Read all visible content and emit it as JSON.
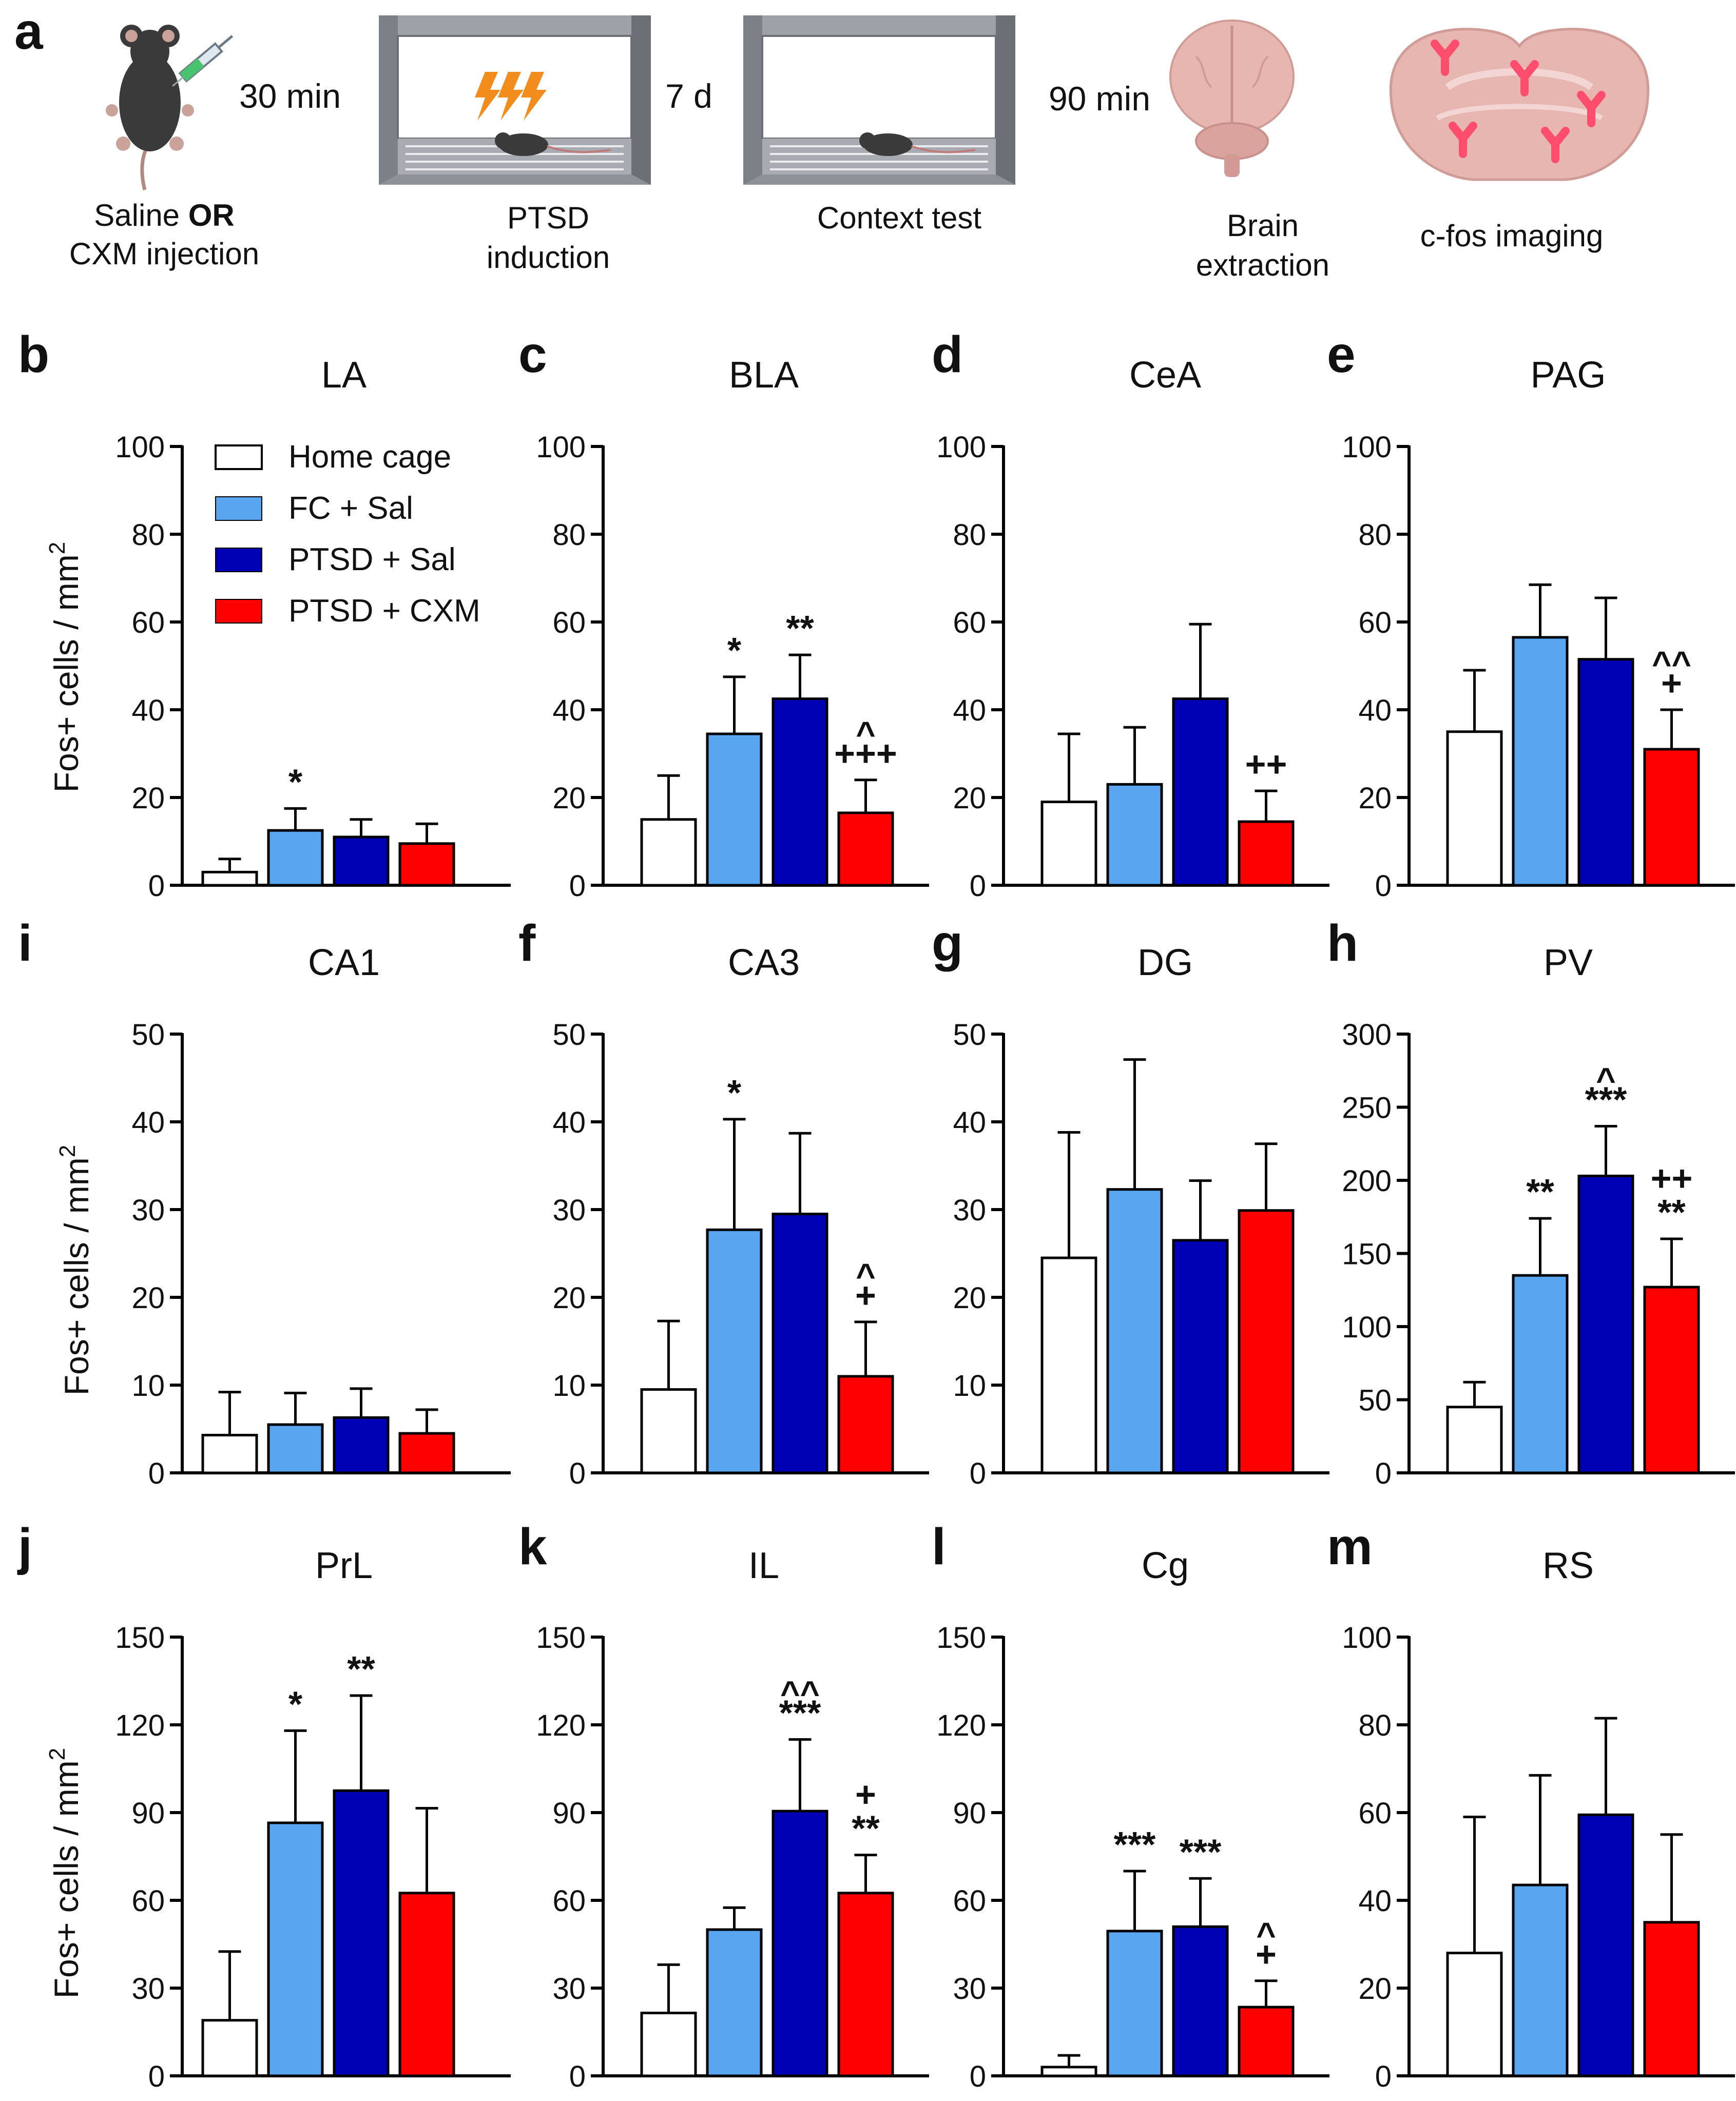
{
  "colors": {
    "home_cage": "#ffffff",
    "fc_sal": "#5aa5ef",
    "ptsd_sal": "#0000b4",
    "ptsd_cxm": "#ff0000",
    "box_gray": "#8a8d93",
    "box_dark": "#5f6368",
    "bolt": "#f28c1d",
    "brain": "#e8b6b1",
    "antibody": "#ff4d6d",
    "mouse": "#3a3a3a"
  },
  "panel_a": {
    "letter": "a",
    "step1_line1_pre": "Saline ",
    "step1_line1_bold": "OR",
    "step1_line2": "CXM injection",
    "arrow1": "30 min",
    "step2_line1": "PTSD",
    "step2_line2": "induction",
    "arrow2": "7 d",
    "step3": "Context test",
    "arrow3": "90 min",
    "step4_line1": "Brain",
    "step4_line2": "extraction",
    "step5": "c-fos imaging",
    "icons": [
      "mouse-with-syringe-icon",
      "fear-conditioning-box-icon",
      "context-box-icon",
      "brain-icon",
      "brain-slice-antibody-icon"
    ]
  },
  "y_axis_label": "Fos+ cells / mm",
  "y_axis_label_sup": "2",
  "legend": [
    "Home cage",
    "FC + Sal",
    "PTSD + Sal",
    "PTSD + CXM"
  ],
  "chart_data": [
    {
      "panel": "b",
      "title": "LA",
      "type": "bar",
      "categories": [
        "Home cage",
        "FC + Sal",
        "PTSD + Sal",
        "PTSD + CXM"
      ],
      "values": [
        3,
        12.5,
        11,
        9.5
      ],
      "errors": [
        3,
        5,
        4,
        4.5
      ],
      "ylim": [
        0,
        100
      ],
      "yticks": [
        0,
        20,
        40,
        60,
        80,
        100
      ],
      "annotations": [
        "",
        "*",
        "",
        ""
      ]
    },
    {
      "panel": "c",
      "title": "BLA",
      "type": "bar",
      "categories": [
        "Home cage",
        "FC + Sal",
        "PTSD + Sal",
        "PTSD + CXM"
      ],
      "values": [
        15,
        34.5,
        42.5,
        16.5
      ],
      "errors": [
        10,
        13,
        10,
        7.5
      ],
      "ylim": [
        0,
        100
      ],
      "yticks": [
        0,
        20,
        40,
        60,
        80,
        100
      ],
      "annotations": [
        "",
        "*",
        "**",
        "^\n+++"
      ]
    },
    {
      "panel": "d",
      "title": "CeA",
      "type": "bar",
      "categories": [
        "Home cage",
        "FC + Sal",
        "PTSD + Sal",
        "PTSD + CXM"
      ],
      "values": [
        19,
        23,
        42.5,
        14.5
      ],
      "errors": [
        15.5,
        13,
        17,
        7
      ],
      "ylim": [
        0,
        100
      ],
      "yticks": [
        0,
        20,
        40,
        60,
        80,
        100
      ],
      "annotations": [
        "",
        "",
        "",
        "++"
      ]
    },
    {
      "panel": "e",
      "title": "PAG",
      "type": "bar",
      "categories": [
        "Home cage",
        "FC + Sal",
        "PTSD + Sal",
        "PTSD + CXM"
      ],
      "values": [
        35,
        56.5,
        51.5,
        31
      ],
      "errors": [
        14,
        12,
        14,
        9
      ],
      "ylim": [
        0,
        100
      ],
      "yticks": [
        0,
        20,
        40,
        60,
        80,
        100
      ],
      "annotations": [
        "",
        "",
        "",
        "^^\n+"
      ]
    },
    {
      "panel": "i",
      "title": "CA1",
      "type": "bar",
      "categories": [
        "Home cage",
        "FC + Sal",
        "PTSD + Sal",
        "PTSD + CXM"
      ],
      "values": [
        4.3,
        5.5,
        6.3,
        4.5
      ],
      "errors": [
        4.9,
        3.6,
        3.3,
        2.7
      ],
      "ylim": [
        0,
        50
      ],
      "yticks": [
        0,
        10,
        20,
        30,
        40,
        50
      ],
      "annotations": [
        "",
        "",
        "",
        ""
      ]
    },
    {
      "panel": "f",
      "title": "CA3",
      "type": "bar",
      "categories": [
        "Home cage",
        "FC + Sal",
        "PTSD + Sal",
        "PTSD + CXM"
      ],
      "values": [
        9.5,
        27.7,
        29.5,
        11
      ],
      "errors": [
        7.8,
        12.6,
        9.2,
        6.2
      ],
      "ylim": [
        0,
        50
      ],
      "yticks": [
        0,
        10,
        20,
        30,
        40,
        50
      ],
      "annotations": [
        "",
        "*",
        "",
        "^\n+"
      ]
    },
    {
      "panel": "g",
      "title": "DG",
      "type": "bar",
      "categories": [
        "Home cage",
        "FC + Sal",
        "PTSD + Sal",
        "PTSD + CXM"
      ],
      "values": [
        24.5,
        32.3,
        26.5,
        29.9
      ],
      "errors": [
        14.3,
        14.8,
        6.8,
        7.6
      ],
      "ylim": [
        0,
        50
      ],
      "yticks": [
        0,
        10,
        20,
        30,
        40,
        50
      ],
      "annotations": [
        "",
        "",
        "",
        ""
      ]
    },
    {
      "panel": "h",
      "title": "PV",
      "type": "bar",
      "categories": [
        "Home cage",
        "FC + Sal",
        "PTSD + Sal",
        "PTSD + CXM"
      ],
      "values": [
        45,
        135,
        203,
        127
      ],
      "errors": [
        17,
        39,
        34,
        33
      ],
      "ylim": [
        0,
        300
      ],
      "yticks": [
        0,
        50,
        100,
        150,
        200,
        250,
        300
      ],
      "annotations": [
        "",
        "**",
        "^\n***",
        "++\n**"
      ]
    },
    {
      "panel": "j",
      "title": "PrL",
      "type": "bar",
      "categories": [
        "Home cage",
        "FC + Sal",
        "PTSD + Sal",
        "PTSD + CXM"
      ],
      "values": [
        19,
        86.5,
        97.5,
        62.5
      ],
      "errors": [
        23.5,
        31.5,
        32.5,
        29
      ],
      "ylim": [
        0,
        150
      ],
      "yticks": [
        0,
        30,
        60,
        90,
        120,
        150
      ],
      "annotations": [
        "",
        "*",
        "**",
        ""
      ]
    },
    {
      "panel": "k",
      "title": "IL",
      "type": "bar",
      "categories": [
        "Home cage",
        "FC + Sal",
        "PTSD + Sal",
        "PTSD + CXM"
      ],
      "values": [
        21.5,
        50,
        90.5,
        62.5
      ],
      "errors": [
        16.5,
        7.5,
        24.5,
        13
      ],
      "ylim": [
        0,
        150
      ],
      "yticks": [
        0,
        30,
        60,
        90,
        120,
        150
      ],
      "annotations": [
        "",
        "",
        "^^\n***",
        "+\n**"
      ]
    },
    {
      "panel": "l",
      "title": "Cg",
      "type": "bar",
      "categories": [
        "Home cage",
        "FC + Sal",
        "PTSD + Sal",
        "PTSD + CXM"
      ],
      "values": [
        3,
        49.5,
        51,
        23.5
      ],
      "errors": [
        4,
        20.5,
        16.5,
        9
      ],
      "ylim": [
        0,
        150
      ],
      "yticks": [
        0,
        30,
        60,
        90,
        120,
        150
      ],
      "annotations": [
        "",
        "***",
        "***",
        "^\n+"
      ]
    },
    {
      "panel": "m",
      "title": "RS",
      "type": "bar",
      "categories": [
        "Home cage",
        "FC + Sal",
        "PTSD + Sal",
        "PTSD + CXM"
      ],
      "values": [
        28,
        43.5,
        59.5,
        35
      ],
      "errors": [
        31,
        25,
        22,
        20
      ],
      "ylim": [
        0,
        100
      ],
      "yticks": [
        0,
        20,
        40,
        60,
        80,
        100
      ],
      "annotations": [
        "",
        "",
        "",
        ""
      ]
    }
  ]
}
